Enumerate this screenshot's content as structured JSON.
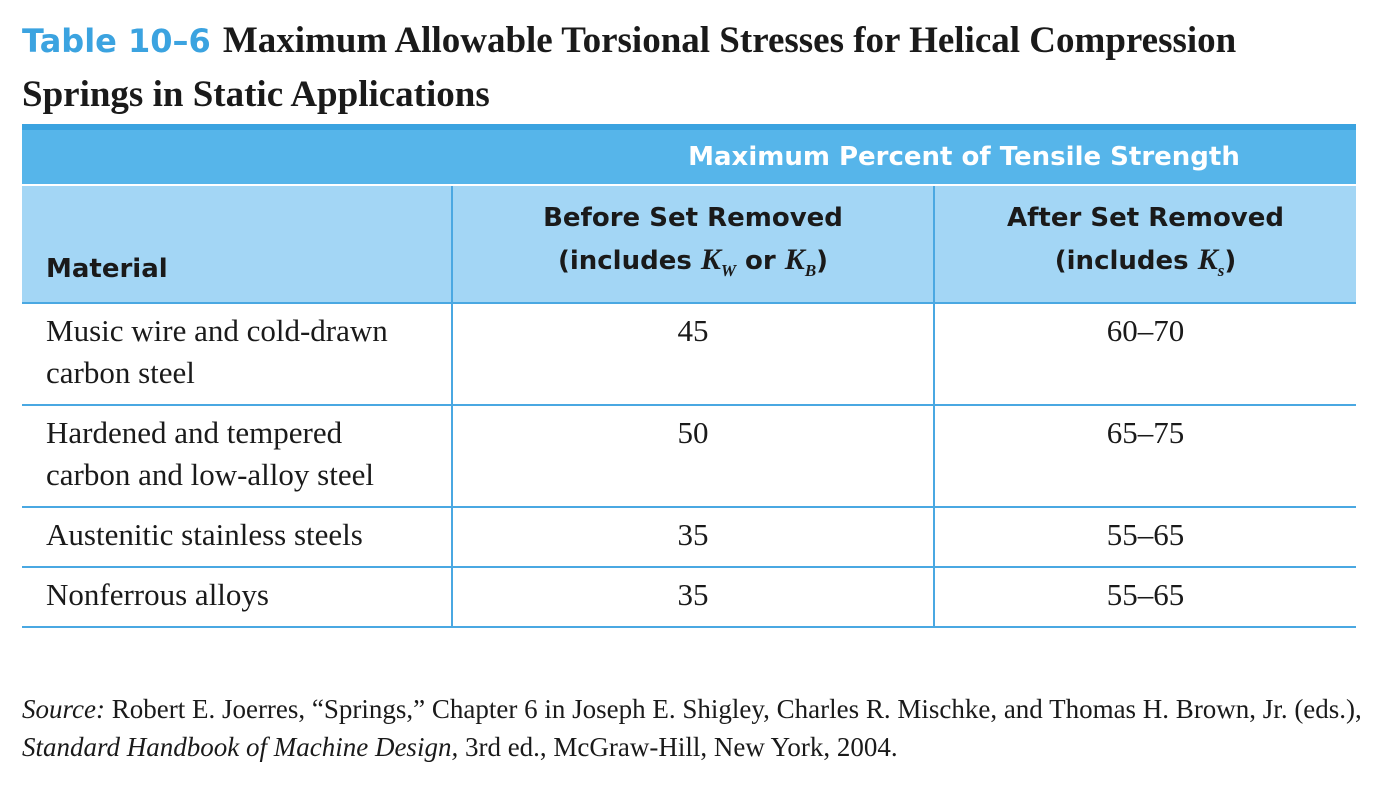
{
  "caption": {
    "label": "Table 10–6",
    "title": "Maximum Allowable Torsional Stresses for Helical Compression Springs in Static Applications"
  },
  "table": {
    "group_header": "Maximum Percent of Tensile Strength",
    "columns": {
      "material": "Material",
      "before": {
        "line1": "Before Set Removed",
        "line2_prefix": "(includes ",
        "k1": "K",
        "k1_sub": "W",
        "connector": " or ",
        "k2": "K",
        "k2_sub": "B",
        "line2_suffix": ")"
      },
      "after": {
        "line1": "After Set Removed",
        "line2_prefix": "(includes ",
        "k": "K",
        "k_sub": "s",
        "line2_suffix": ")"
      }
    },
    "rows": [
      {
        "material": "Music wire and cold-drawn carbon steel",
        "before": "45",
        "after": "60–70"
      },
      {
        "material": "Hardened and tempered carbon and low-alloy steel",
        "before": "50",
        "after": "65–75"
      },
      {
        "material": "Austenitic stainless steels",
        "before": "35",
        "after": "55–65"
      },
      {
        "material": "Nonferrous alloys",
        "before": "35",
        "after": "55–65"
      }
    ]
  },
  "source": {
    "label": "Source:",
    "text_before": " Robert E. Joerres, “Springs,” Chapter 6 in Joseph E. Shigley, Charles R. Mischke, and Thomas H. Brown, Jr. (eds.), ",
    "book": "Standard Handbook of Machine Design,",
    "text_after": " 3rd ed., McGraw-Hill, New York, 2004."
  },
  "colors": {
    "accent": "#3ba3e0",
    "group_header_bg": "#56b5ea",
    "column_header_bg": "#a3d6f5",
    "rule": "#4aa8e2"
  }
}
